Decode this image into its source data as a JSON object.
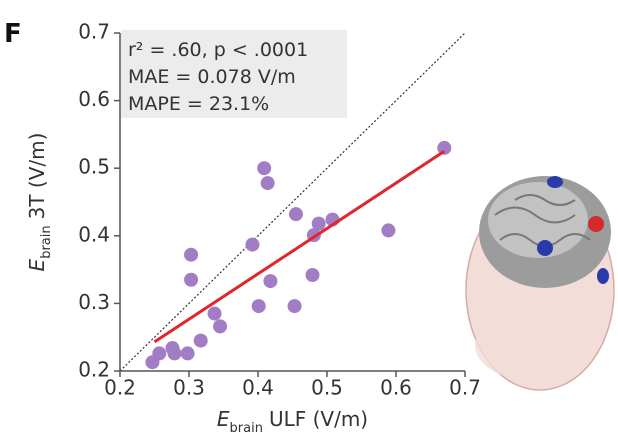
{
  "chart_data": {
    "type": "scatter",
    "panel_label": "F",
    "x_label": {
      "symbol": "E",
      "subscript": "brain",
      "text": "ULF (V/m)"
    },
    "y_label": {
      "symbol": "E",
      "subscript": "brain",
      "text": "3T (V/m)"
    },
    "annotations": [
      "r² = .60, p < .0001",
      "MAE = 0.078 V/m",
      "MAPE = 23.1%"
    ],
    "x": [
      0.247,
      0.257,
      0.276,
      0.279,
      0.298,
      0.303,
      0.303,
      0.317,
      0.337,
      0.345,
      0.392,
      0.401,
      0.409,
      0.414,
      0.418,
      0.453,
      0.455,
      0.479,
      0.481,
      0.488,
      0.508,
      0.589,
      0.67
    ],
    "values": [
      0.213,
      0.226,
      0.234,
      0.226,
      0.226,
      0.372,
      0.335,
      0.245,
      0.285,
      0.266,
      0.387,
      0.296,
      0.5,
      0.478,
      0.333,
      0.296,
      0.432,
      0.342,
      0.401,
      0.418,
      0.424,
      0.408,
      0.53
    ],
    "color": "#a17dc6",
    "fit_line": {
      "x": [
        0.25,
        0.67
      ],
      "y": [
        0.243,
        0.525
      ],
      "color": "#e0262b"
    },
    "identity_line": true,
    "xlim": [
      0.2,
      0.7
    ],
    "ylim": [
      0.2,
      0.7
    ],
    "xticks": [
      0.2,
      0.3,
      0.4,
      0.5,
      0.6,
      0.7
    ],
    "yticks": [
      0.2,
      0.3,
      0.4,
      0.5,
      0.6,
      0.7
    ]
  }
}
